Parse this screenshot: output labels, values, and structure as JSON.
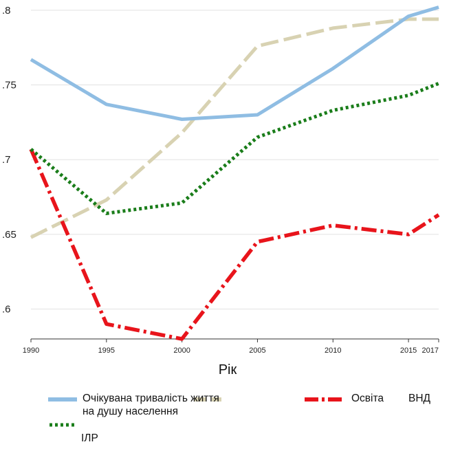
{
  "chart_data": {
    "type": "line",
    "title": "",
    "xlabel": "Рік",
    "ylabel": "",
    "x": [
      1990,
      1995,
      2000,
      2005,
      2010,
      2015,
      2017
    ],
    "x_ticks": [
      "1990",
      "1995",
      "2000",
      "2005",
      "2010",
      "2015",
      "2017"
    ],
    "y_ticks": [
      {
        "value": 0.8,
        "label": ".8"
      },
      {
        "value": 0.75,
        "label": ".75"
      },
      {
        "value": 0.7,
        "label": ".7"
      },
      {
        "value": 0.65,
        "label": ".65"
      },
      {
        "value": 0.6,
        "label": ".6"
      }
    ],
    "xlim": [
      1990,
      2017
    ],
    "ylim": [
      0.58,
      0.805
    ],
    "grid": true,
    "legend_position": "bottom",
    "series": [
      {
        "name": "Очікувана тривалість життя",
        "color": "#8fbde3",
        "style": "solid",
        "values": [
          0.767,
          0.737,
          0.727,
          0.73,
          0.761,
          0.796,
          0.802
        ]
      },
      {
        "name": "ВНД на душу населення",
        "color": "#d8d2b2",
        "style": "longdash",
        "values": [
          0.648,
          0.673,
          0.718,
          0.776,
          0.788,
          0.794,
          0.794
        ]
      },
      {
        "name": "Освіта",
        "color": "#e8141b",
        "style": "dashdot",
        "values": [
          0.707,
          0.59,
          0.58,
          0.645,
          0.656,
          0.65,
          0.663
        ]
      },
      {
        "name": "ІЛР",
        "color": "#1a7d1a",
        "style": "dotted",
        "values": [
          0.707,
          0.664,
          0.671,
          0.715,
          0.733,
          0.743,
          0.751
        ]
      }
    ]
  },
  "legend": {
    "life": "Очікувана тривалість життя",
    "gni": "на душу населення",
    "edu": "Освіта",
    "vnd": "ВНД",
    "hdi": "ІЛР"
  }
}
